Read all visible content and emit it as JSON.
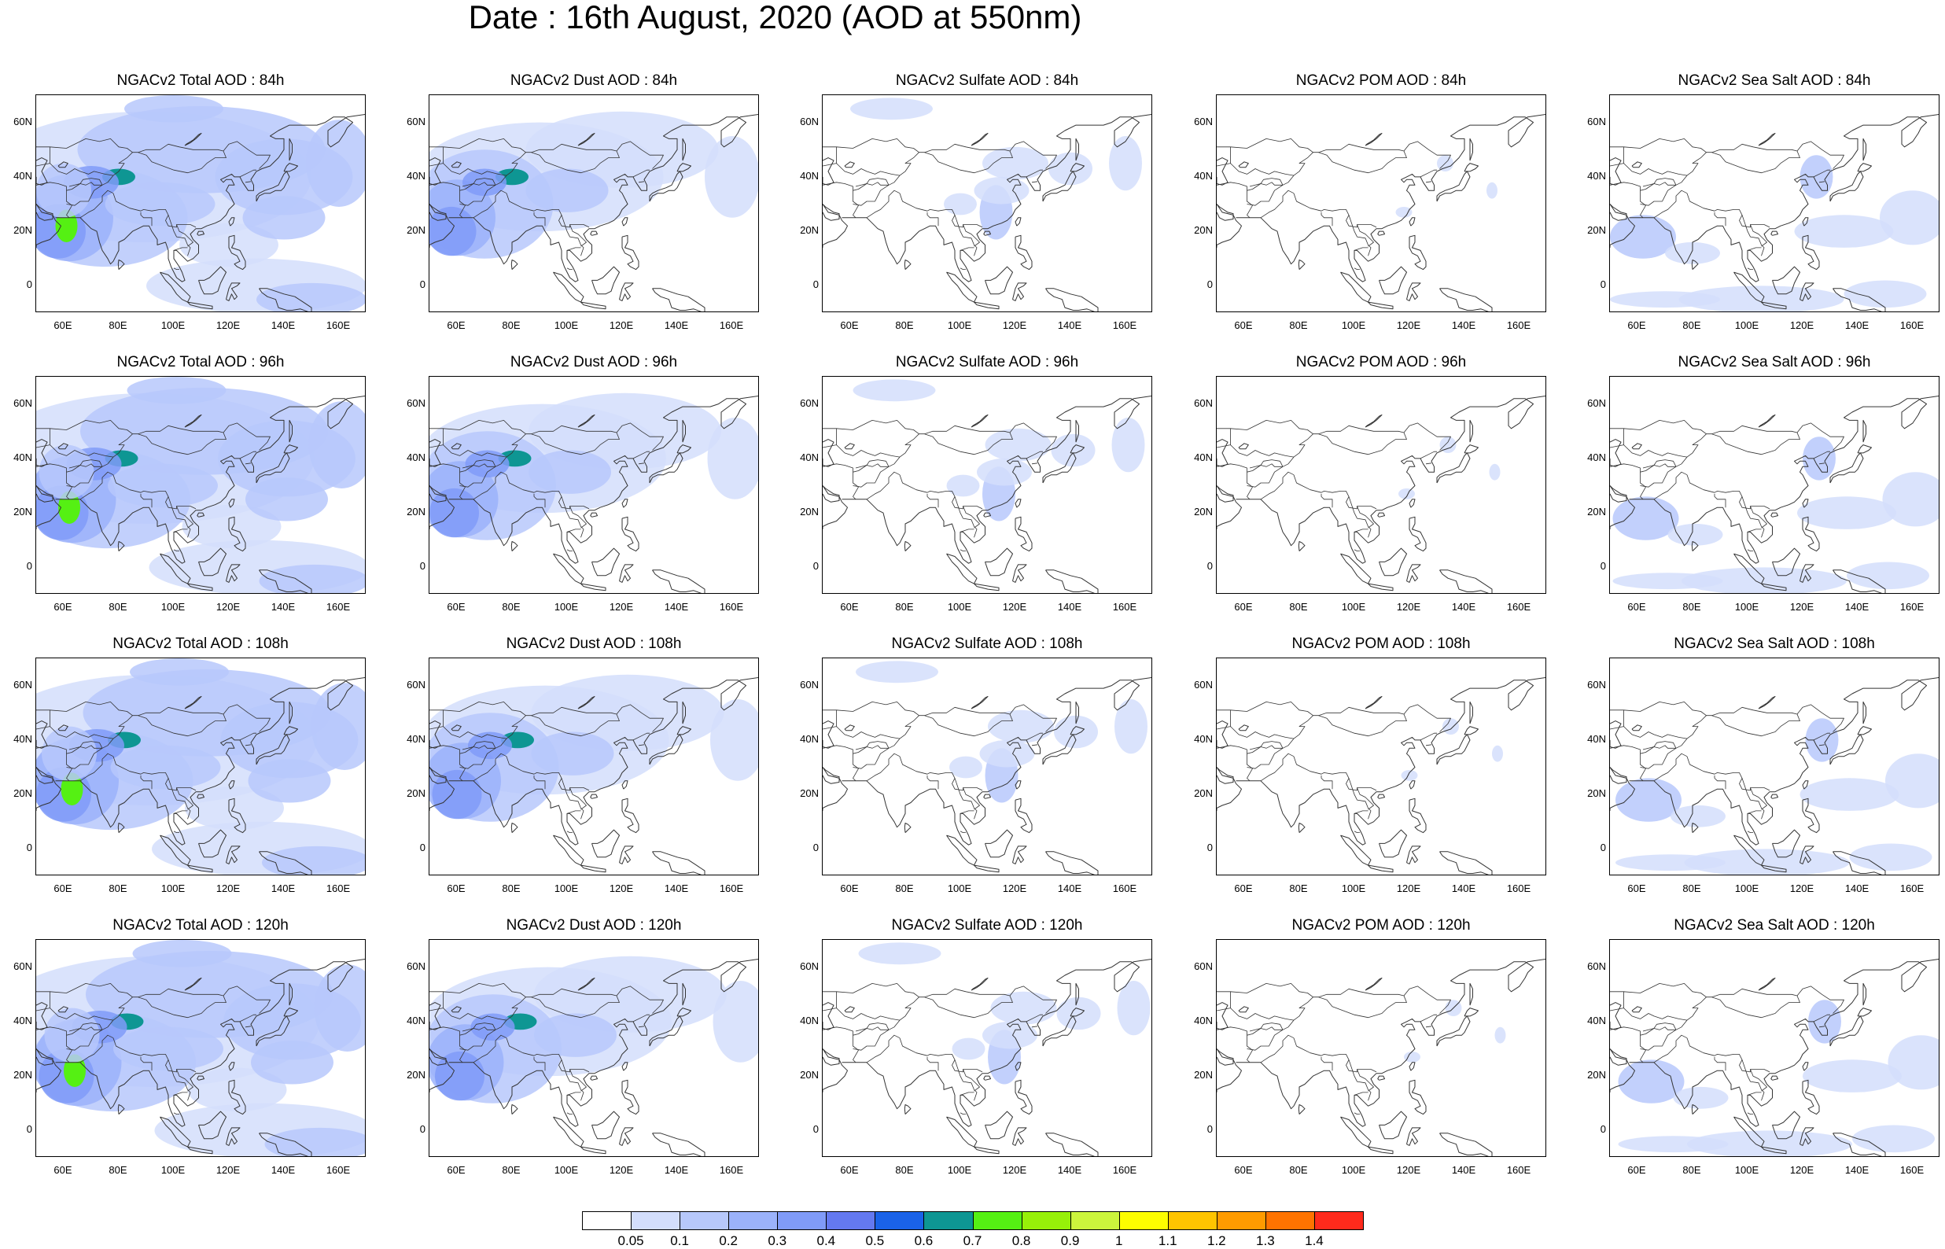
{
  "title": "Date : 16th August, 2020 (AOD at 550nm)",
  "colorbar": {
    "colors": [
      "#ffffff",
      "#d3defc",
      "#b7c8fb",
      "#9bb2fa",
      "#809bf8",
      "#6479f0",
      "#1a62e8",
      "#0e9693",
      "#55f013",
      "#97f009",
      "#ccf53c",
      "#fdfd00",
      "#ffc400",
      "#ff9b00",
      "#ff7300",
      "#ff2a1c"
    ],
    "labels": [
      "0.05",
      "0.1",
      "0.2",
      "0.3",
      "0.4",
      "0.5",
      "0.6",
      "0.7",
      "0.8",
      "0.9",
      "1",
      "1.1",
      "1.2",
      "1.3",
      "1.4"
    ]
  },
  "axes": {
    "lat_ticks": [
      "60N",
      "40N",
      "20N",
      "0"
    ],
    "lon_ticks": [
      "60E",
      "80E",
      "100E",
      "120E",
      "140E",
      "160E"
    ]
  },
  "panels": [
    [
      {
        "title": "NGACv2 Total AOD : 84h",
        "type": "total"
      },
      {
        "title": "NGACv2 Dust AOD : 84h",
        "type": "dust"
      },
      {
        "title": "NGACv2 Sulfate AOD : 84h",
        "type": "sulfate"
      },
      {
        "title": "NGACv2 POM AOD : 84h",
        "type": "pom"
      },
      {
        "title": "NGACv2 Sea Salt AOD : 84h",
        "type": "seasalt"
      }
    ],
    [
      {
        "title": "NGACv2 Total AOD : 96h",
        "type": "total"
      },
      {
        "title": "NGACv2 Dust AOD : 96h",
        "type": "dust"
      },
      {
        "title": "NGACv2 Sulfate AOD : 96h",
        "type": "sulfate"
      },
      {
        "title": "NGACv2 POM AOD : 96h",
        "type": "pom"
      },
      {
        "title": "NGACv2 Sea Salt AOD : 96h",
        "type": "seasalt"
      }
    ],
    [
      {
        "title": "NGACv2 Total AOD : 108h",
        "type": "total"
      },
      {
        "title": "NGACv2 Dust AOD : 108h",
        "type": "dust"
      },
      {
        "title": "NGACv2 Sulfate AOD : 108h",
        "type": "sulfate"
      },
      {
        "title": "NGACv2 POM AOD : 108h",
        "type": "pom"
      },
      {
        "title": "NGACv2 Sea Salt AOD : 108h",
        "type": "seasalt"
      }
    ],
    [
      {
        "title": "NGACv2 Total AOD : 120h",
        "type": "total"
      },
      {
        "title": "NGACv2 Dust AOD : 120h",
        "type": "dust"
      },
      {
        "title": "NGACv2 Sulfate AOD : 120h",
        "type": "sulfate"
      },
      {
        "title": "NGACv2 POM AOD : 120h",
        "type": "pom"
      },
      {
        "title": "NGACv2 Sea Salt  AOD : 120h",
        "type": "seasalt"
      }
    ]
  ]
}
